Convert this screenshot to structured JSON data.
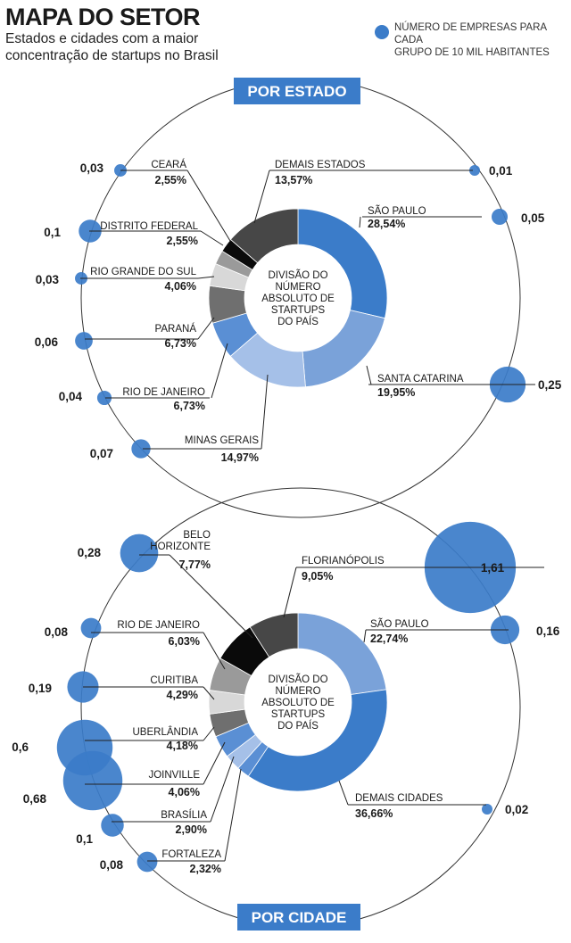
{
  "header": {
    "title": "MAPA DO SETOR",
    "subtitle_lines": [
      "Estados e cidades com a maior",
      "concentração de startups no Brasil"
    ]
  },
  "legend": {
    "lines": [
      "NÚMERO DE EMPRESAS PARA CADA",
      "GRUPO DE 10 MIL HABITANTES"
    ],
    "color": "#3b7cc9"
  },
  "chart_data": [
    {
      "type": "pie",
      "banner": "POR ESTADO",
      "center_lines": [
        "DIVISÃO DO",
        "NÚMERO",
        "ABSOLUTO DE",
        "STARTUPS",
        "DO PAÍS"
      ],
      "slices": [
        {
          "name": "SÃO PAULO",
          "pct_label": "28,54%",
          "value": 28.54,
          "per10k_label": "0,05",
          "per10k": 0.05,
          "color": "#3b7cc9"
        },
        {
          "name": "SANTA CATARINA",
          "pct_label": "19,95%",
          "value": 19.95,
          "per10k_label": "0,25",
          "per10k": 0.25,
          "color": "#7aa2d9"
        },
        {
          "name": "MINAS GERAIS",
          "pct_label": "14,97%",
          "value": 14.97,
          "per10k_label": "0,07",
          "per10k": 0.07,
          "color": "#a5c0e8"
        },
        {
          "name": "RIO DE JANEIRO",
          "pct_label": "6,73%",
          "value": 6.73,
          "per10k_label": "0,04",
          "per10k": 0.04,
          "color": "#5a8fd4"
        },
        {
          "name": "PARANÁ",
          "pct_label": "6,73%",
          "value": 6.73,
          "per10k_label": "0,06",
          "per10k": 0.06,
          "color": "#6f6f6f"
        },
        {
          "name": "RIO GRANDE DO SUL",
          "pct_label": "4,06%",
          "value": 4.06,
          "per10k_label": "0,03",
          "per10k": 0.03,
          "color": "#d8d8d8"
        },
        {
          "name": "DISTRITO FEDERAL",
          "pct_label": "2,55%",
          "value": 2.55,
          "per10k_label": "0,1",
          "per10k": 0.1,
          "color": "#9a9a9a"
        },
        {
          "name": "CEARÁ",
          "pct_label": "2,55%",
          "value": 2.55,
          "per10k_label": "0,03",
          "per10k": 0.03,
          "color": "#0a0a0a"
        },
        {
          "name": "DEMAIS ESTADOS",
          "pct_label": "13,57%",
          "value": 13.57,
          "per10k_label": "0,01",
          "per10k": 0.01,
          "color": "#474747"
        }
      ]
    },
    {
      "type": "pie",
      "banner": "POR CIDADE",
      "center_lines": [
        "DIVISÃO DO",
        "NÚMERO",
        "ABSOLUTO DE",
        "STARTUPS",
        "DO PAÍS"
      ],
      "slices": [
        {
          "name": "SÃO PAULO",
          "pct_label": "22,74%",
          "value": 22.74,
          "per10k_label": "0,16",
          "per10k": 0.16,
          "color": "#7aa2d9"
        },
        {
          "name": "DEMAIS CIDADES",
          "pct_label": "36,66%",
          "value": 36.66,
          "per10k_label": "0,02",
          "per10k": 0.02,
          "color": "#3b7cc9"
        },
        {
          "name": "FORTALEZA",
          "pct_label": "2,32%",
          "value": 2.32,
          "per10k_label": "0,08",
          "per10k": 0.08,
          "color": "#5a8fd4"
        },
        {
          "name": "BRASÍLIA",
          "pct_label": "2,90%",
          "value": 2.9,
          "per10k_label": "0,1",
          "per10k": 0.1,
          "color": "#a5c0e8"
        },
        {
          "name": "JOINVILLE",
          "pct_label": "4,06%",
          "value": 4.06,
          "per10k_label": "0,68",
          "per10k": 0.68,
          "color": "#5a8fd4"
        },
        {
          "name": "UBERLÂNDIA",
          "pct_label": "4,18%",
          "value": 4.18,
          "per10k_label": "0,6",
          "per10k": 0.6,
          "color": "#6f6f6f"
        },
        {
          "name": "CURITIBA",
          "pct_label": "4,29%",
          "value": 4.29,
          "per10k_label": "0,19",
          "per10k": 0.19,
          "color": "#d8d8d8"
        },
        {
          "name": "RIO DE JANEIRO",
          "pct_label": "6,03%",
          "value": 6.03,
          "per10k_label": "0,08",
          "per10k": 0.08,
          "color": "#9a9a9a"
        },
        {
          "name": "BELO HORIZONTE",
          "pct_label": "7,77%",
          "value": 7.77,
          "per10k_label": "0,28",
          "per10k": 0.28,
          "color": "#0a0a0a"
        },
        {
          "name": "FLORIANÓPOLIS",
          "pct_label": "9,05%",
          "value": 9.05,
          "per10k_label": "1,61",
          "per10k": 1.61,
          "color": "#474747"
        }
      ]
    }
  ]
}
